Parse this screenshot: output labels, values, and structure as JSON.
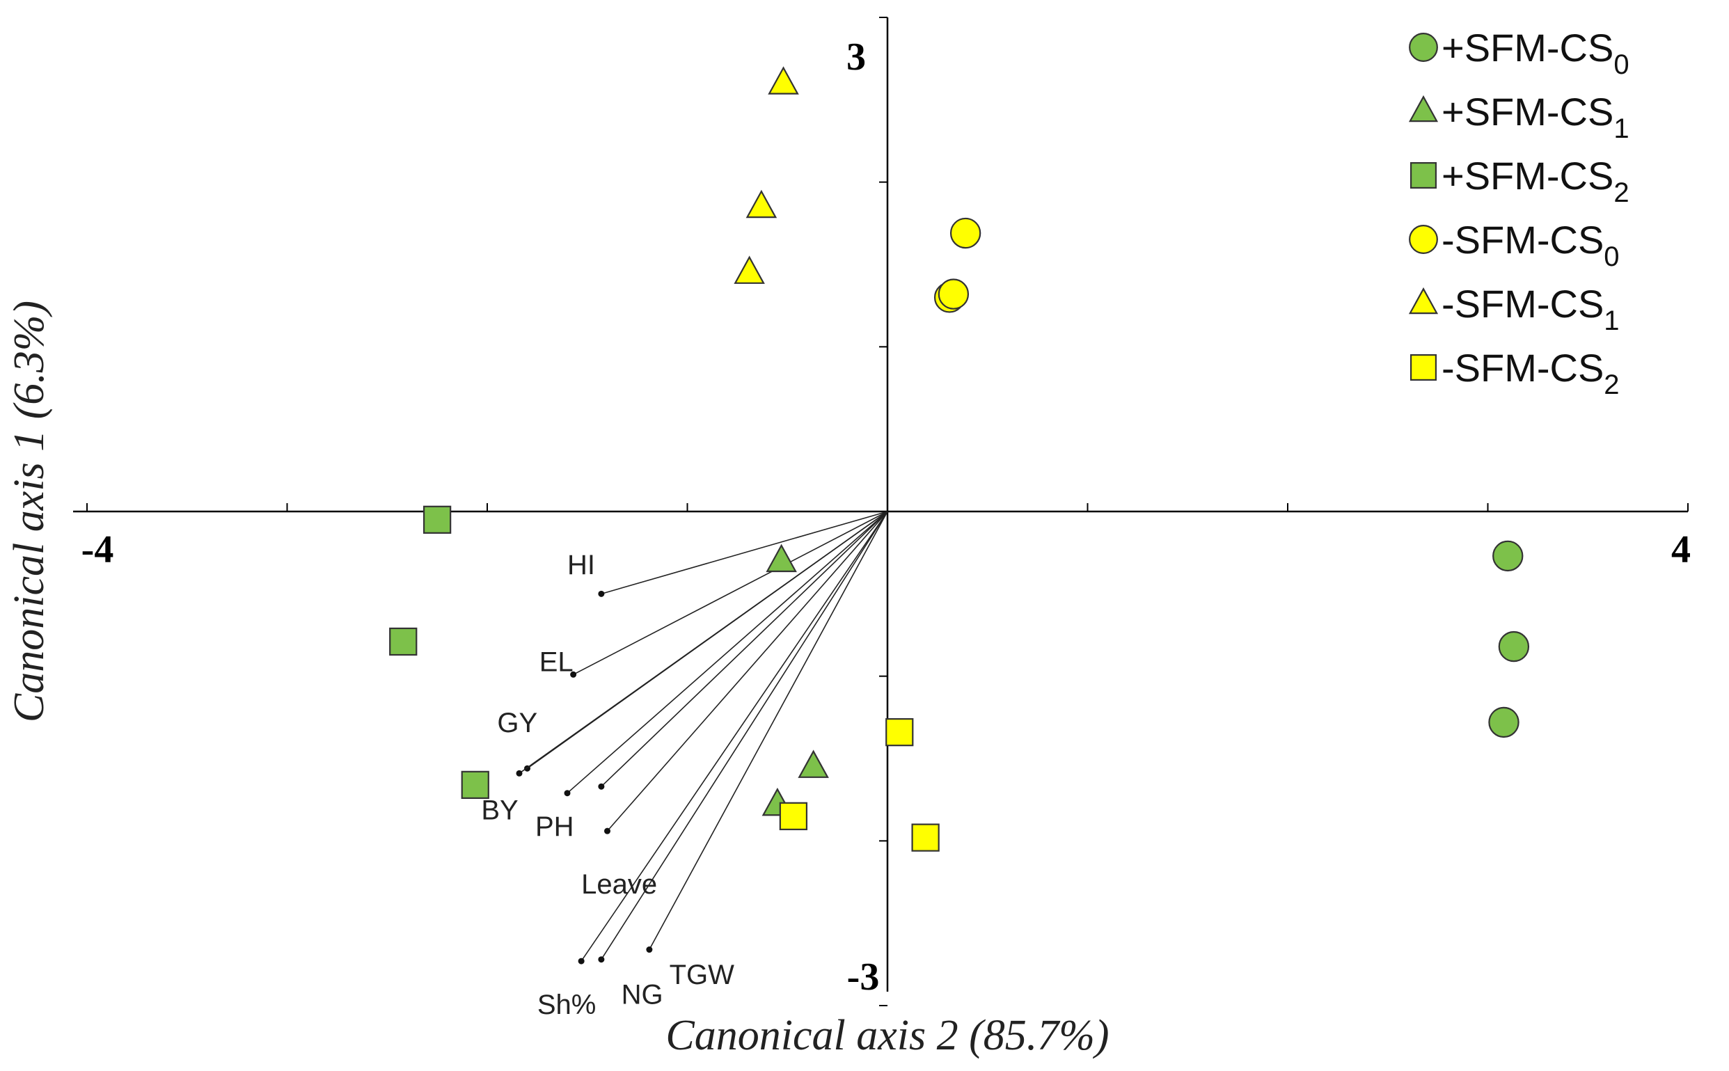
{
  "chart_data": {
    "type": "scatter",
    "subtype": "canonical-discriminant-biplot",
    "xlabel": "Canonical axis 2 (85.7%)",
    "ylabel": "Canonical axis 1 (6.3%)",
    "xlim": [
      -4,
      4
    ],
    "ylim": [
      -3,
      3
    ],
    "tick_labels": {
      "xmin": "-4",
      "xmax": "4",
      "ymin": "-3",
      "ymax": "3"
    },
    "legend_position": "top-right",
    "colors": {
      "green": "#7dc14a",
      "yellow": "#ffff00",
      "stroke": "#333333"
    },
    "series": [
      {
        "name": "+SFM-CS",
        "sub": "0",
        "marker": "circle",
        "color": "#7dc14a",
        "points": [
          [
            3.1,
            -0.27
          ],
          [
            3.13,
            -0.82
          ],
          [
            3.08,
            -1.28
          ]
        ]
      },
      {
        "name": "+SFM-CS",
        "sub": "1",
        "marker": "triangle",
        "color": "#7dc14a",
        "points": [
          [
            -0.53,
            -0.3
          ],
          [
            -0.37,
            -1.55
          ],
          [
            -0.55,
            -1.78
          ]
        ]
      },
      {
        "name": "+SFM-CS",
        "sub": "2",
        "marker": "square",
        "color": "#7dc14a",
        "points": [
          [
            -2.25,
            -0.05
          ],
          [
            -2.42,
            -0.79
          ],
          [
            -2.06,
            -1.66
          ]
        ]
      },
      {
        "name": "-SFM-CS",
        "sub": "0",
        "marker": "circle",
        "color": "#ffff00",
        "points": [
          [
            0.39,
            1.69
          ],
          [
            0.31,
            1.3
          ],
          [
            0.33,
            1.32
          ]
        ]
      },
      {
        "name": "-SFM-CS",
        "sub": "1",
        "marker": "triangle",
        "color": "#ffff00",
        "points": [
          [
            -0.52,
            2.6
          ],
          [
            -0.63,
            1.85
          ],
          [
            -0.69,
            1.45
          ]
        ]
      },
      {
        "name": "-SFM-CS",
        "sub": "2",
        "marker": "square",
        "color": "#ffff00",
        "points": [
          [
            0.06,
            -1.34
          ],
          [
            -0.47,
            -1.85
          ],
          [
            0.19,
            -1.98
          ]
        ]
      }
    ],
    "vectors": [
      {
        "label": "HI",
        "end": [
          -1.43,
          -0.5
        ],
        "label_at": [
          -1.6,
          -0.38
        ]
      },
      {
        "label": "EL",
        "end": [
          -1.57,
          -0.99
        ],
        "label_at": [
          -1.74,
          -0.97
        ]
      },
      {
        "label": "GY",
        "end": [
          -1.8,
          -1.56
        ],
        "label_at": [
          -1.95,
          -1.34
        ]
      },
      {
        "label": "BY",
        "end": [
          -1.84,
          -1.59
        ],
        "label_at": [
          -2.03,
          -1.87
        ]
      },
      {
        "label": "PH",
        "end": [
          -1.6,
          -1.71
        ],
        "label_at": [
          -1.76,
          -1.97
        ]
      },
      {
        "label": "Leave",
        "end": [
          -1.43,
          -1.67
        ],
        "label_at": [
          -1.53,
          -2.32
        ]
      },
      {
        "label": "",
        "end": [
          -1.4,
          -1.94
        ]
      },
      {
        "label": "Sh%",
        "end": [
          -1.53,
          -2.73
        ],
        "label_at": [
          -1.75,
          -3.05
        ]
      },
      {
        "label": "NG",
        "end": [
          -1.43,
          -2.72
        ],
        "label_at": [
          -1.33,
          -2.99
        ]
      },
      {
        "label": "TGW",
        "end": [
          -1.19,
          -2.66
        ],
        "label_at": [
          -1.09,
          -2.87
        ]
      }
    ]
  }
}
